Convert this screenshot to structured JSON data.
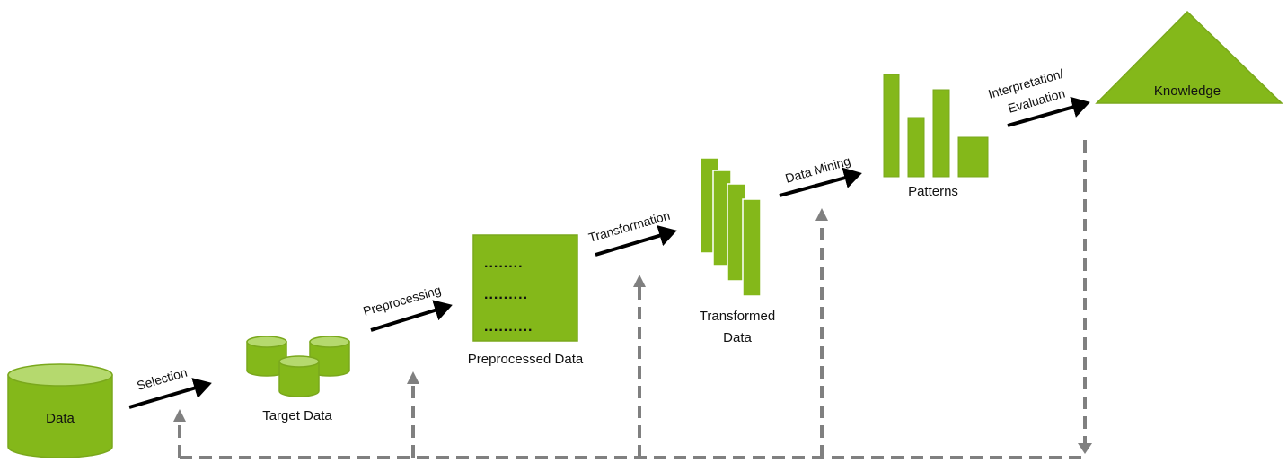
{
  "colors": {
    "fill": "#84b81a",
    "fill_light": "#b5d96e",
    "stroke": "#7aa81c",
    "arrow": "#000000",
    "feedback": "#808080"
  },
  "nodes": {
    "data": {
      "label": "Data"
    },
    "target_data": {
      "label": "Target Data"
    },
    "preprocessed_data": {
      "label": "Preprocessed Data",
      "lines": [
        "........",
        ".........",
        ".........."
      ]
    },
    "transformed_data": {
      "label_line1": "Transformed",
      "label_line2": "Data"
    },
    "patterns": {
      "label": "Patterns"
    },
    "knowledge": {
      "label": "Knowledge"
    }
  },
  "steps": {
    "selection": "Selection",
    "preprocessing": "Preprocessing",
    "transformation": "Transformation",
    "data_mining": "Data Mining",
    "interpretation_line1": "Interpretation/",
    "interpretation_line2": "Evaluation"
  }
}
